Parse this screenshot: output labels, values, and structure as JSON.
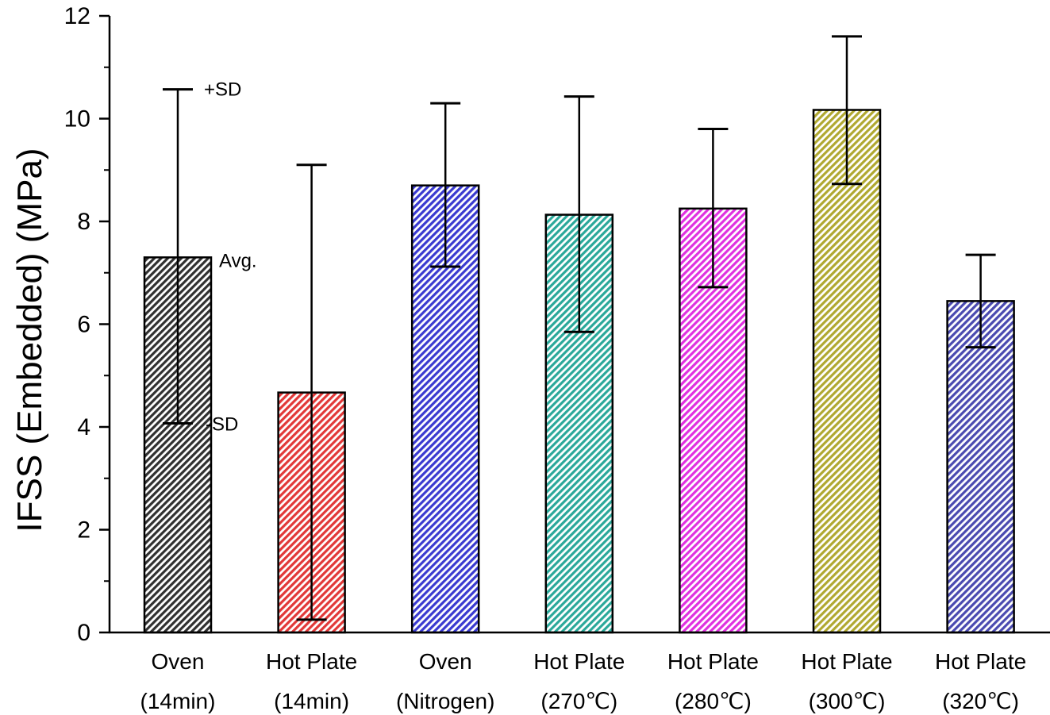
{
  "chart_data": {
    "type": "bar",
    "ylabel": "IFSS (Embedded) (MPa)",
    "xlabel": "",
    "ylim": [
      0,
      12
    ],
    "yticks": [
      0,
      2,
      4,
      6,
      8,
      10,
      12
    ],
    "grid": false,
    "categories": [
      {
        "line1": "Oven",
        "line2": "(14min)"
      },
      {
        "line1": "Hot Plate",
        "line2": "(14min)"
      },
      {
        "line1": "Oven",
        "line2": "(Nitrogen)"
      },
      {
        "line1": "Hot Plate",
        "line2": "(270℃)"
      },
      {
        "line1": "Hot Plate",
        "line2": "(280℃)"
      },
      {
        "line1": "Hot Plate",
        "line2": "(300℃)"
      },
      {
        "line1": "Hot Plate",
        "line2": "(320℃)"
      }
    ],
    "values": [
      7.3,
      4.67,
      8.7,
      8.13,
      8.25,
      10.17,
      6.45
    ],
    "error_low": [
      4.07,
      0.25,
      7.12,
      5.85,
      6.72,
      8.73,
      5.55
    ],
    "error_high": [
      10.57,
      9.1,
      10.3,
      10.43,
      9.8,
      11.6,
      7.35
    ],
    "colors": [
      "#303030",
      "#e23838",
      "#3a3ad0",
      "#2aa89a",
      "#e030e0",
      "#b0a830",
      "#4a4ab0"
    ],
    "annotations": {
      "plus_sd": "+SD",
      "avg": "Avg.",
      "minus_sd": "-SD"
    }
  }
}
